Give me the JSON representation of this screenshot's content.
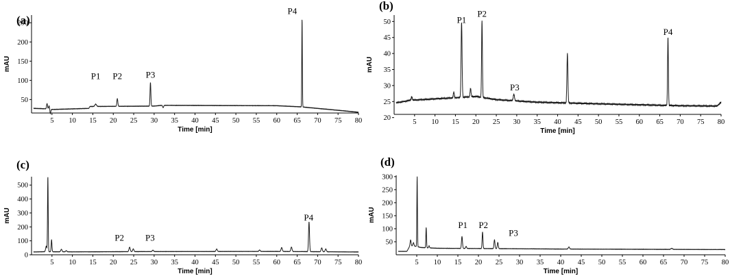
{
  "chart_data": [
    {
      "panel": "(a)",
      "type": "line",
      "xlabel": "Time [min]",
      "ylabel": "mAU",
      "xlim": [
        0,
        80
      ],
      "ylim": [
        15,
        270
      ],
      "xticks": [
        5,
        10,
        15,
        20,
        25,
        30,
        35,
        40,
        45,
        50,
        55,
        60,
        65,
        70,
        75,
        80
      ],
      "yticks": [
        50,
        100,
        150,
        200,
        250
      ],
      "baseline": [
        [
          0.5,
          27
        ],
        [
          3.5,
          26
        ],
        [
          4.5,
          24
        ],
        [
          14,
          27
        ],
        [
          14.3,
          32
        ],
        [
          30,
          33
        ],
        [
          32,
          35
        ],
        [
          60,
          34
        ],
        [
          66,
          31
        ],
        [
          80,
          17
        ]
      ],
      "peaks": [
        {
          "x": 3.8,
          "h": 14,
          "w": 0.12
        },
        {
          "x": 4.3,
          "h": 9,
          "w": 0.12
        },
        {
          "x": 4.6,
          "h": -11,
          "w": 0.1
        },
        {
          "x": 15.7,
          "h": 6,
          "w": 0.2
        },
        {
          "x": 21.0,
          "h": 20,
          "w": 0.12
        },
        {
          "x": 29.1,
          "h": 62,
          "w": 0.1
        },
        {
          "x": 32.2,
          "h": -6,
          "w": 0.12
        },
        {
          "x": 66.2,
          "h": 231,
          "w": 0.07
        }
      ],
      "annotations": [
        {
          "label": "P1",
          "x": 15.7,
          "y": 103
        },
        {
          "label": "P2",
          "x": 21.0,
          "y": 103
        },
        {
          "label": "P3",
          "x": 29.1,
          "y": 107
        },
        {
          "label": "P4",
          "x": 63.8,
          "y": 273
        }
      ]
    },
    {
      "panel": "(b)",
      "type": "line",
      "xlabel": "Time [min]",
      "ylabel": "mAU",
      "xlim": [
        0,
        80
      ],
      "ylim": [
        21,
        52
      ],
      "xticks": [
        5,
        10,
        15,
        20,
        25,
        30,
        35,
        40,
        45,
        50,
        55,
        60,
        65,
        70,
        75,
        80
      ],
      "yticks": [
        20,
        25,
        30,
        35,
        40,
        45,
        50
      ],
      "baseline": [
        [
          0.5,
          24.6
        ],
        [
          4,
          25.4
        ],
        [
          15,
          26.2
        ],
        [
          20,
          26.6
        ],
        [
          25,
          25.6
        ],
        [
          35,
          24.8
        ],
        [
          50,
          24.3
        ],
        [
          70,
          23.7
        ],
        [
          79,
          23.6
        ],
        [
          80,
          24.8
        ]
      ],
      "peaks": [
        {
          "x": 4.3,
          "h": 1.0,
          "w": 0.12
        },
        {
          "x": 14.6,
          "h": 1.8,
          "w": 0.12
        },
        {
          "x": 16.5,
          "h": 23.5,
          "w": 0.12
        },
        {
          "x": 18.7,
          "h": 2.6,
          "w": 0.12
        },
        {
          "x": 21.5,
          "h": 24.0,
          "w": 0.1
        },
        {
          "x": 29.3,
          "h": 2.0,
          "w": 0.15
        },
        {
          "x": 42.4,
          "h": 15.4,
          "w": 0.12
        },
        {
          "x": 67.0,
          "h": 21.2,
          "w": 0.1
        }
      ],
      "annotations": [
        {
          "label": "P1",
          "x": 16.5,
          "y": 49.5
        },
        {
          "label": "P2",
          "x": 21.5,
          "y": 51.5
        },
        {
          "label": "P3",
          "x": 29.5,
          "y": 28.5
        },
        {
          "label": "P4",
          "x": 67.0,
          "y": 45.8
        }
      ]
    },
    {
      "panel": "(c)",
      "type": "line",
      "xlabel": "Time [min]",
      "ylabel": "mAU",
      "xlim": [
        0,
        80
      ],
      "ylim": [
        0,
        560
      ],
      "xticks": [
        5,
        10,
        15,
        20,
        25,
        30,
        35,
        40,
        45,
        50,
        55,
        60,
        65,
        70,
        75,
        80
      ],
      "yticks": [
        0,
        100,
        200,
        300,
        400,
        500
      ],
      "baseline": [
        [
          0.5,
          20
        ],
        [
          3,
          22
        ],
        [
          10,
          21
        ],
        [
          30,
          23
        ],
        [
          60,
          24
        ],
        [
          80,
          20
        ]
      ],
      "peaks": [
        {
          "x": 3.6,
          "h": 40,
          "w": 0.15
        },
        {
          "x": 4.0,
          "h": 540,
          "w": 0.08
        },
        {
          "x": 4.9,
          "h": 88,
          "w": 0.1
        },
        {
          "x": 7.3,
          "h": 18,
          "w": 0.15
        },
        {
          "x": 8.5,
          "h": 8,
          "w": 0.15
        },
        {
          "x": 24.0,
          "h": 32,
          "w": 0.15
        },
        {
          "x": 24.9,
          "h": 20,
          "w": 0.15
        },
        {
          "x": 29.7,
          "h": 10,
          "w": 0.15
        },
        {
          "x": 45.3,
          "h": 18,
          "w": 0.15
        },
        {
          "x": 55.8,
          "h": 10,
          "w": 0.15
        },
        {
          "x": 61.2,
          "h": 28,
          "w": 0.15
        },
        {
          "x": 63.6,
          "h": 32,
          "w": 0.15
        },
        {
          "x": 67.9,
          "h": 214,
          "w": 0.12
        },
        {
          "x": 71.0,
          "h": 28,
          "w": 0.15
        },
        {
          "x": 72.0,
          "h": 20,
          "w": 0.15
        }
      ],
      "annotations": [
        {
          "label": "P2",
          "x": 21.5,
          "y": 100
        },
        {
          "label": "P3",
          "x": 29.0,
          "y": 100
        },
        {
          "label": "P4",
          "x": 67.8,
          "y": 245
        }
      ]
    },
    {
      "panel": "(d)",
      "type": "line",
      "xlabel": "Time [min]",
      "ylabel": "mAU",
      "xlim": [
        0,
        80
      ],
      "ylim": [
        0,
        305
      ],
      "xticks": [
        5,
        10,
        15,
        20,
        25,
        30,
        35,
        40,
        45,
        50,
        55,
        60,
        65,
        70,
        75,
        80
      ],
      "yticks": [
        50,
        100,
        150,
        200,
        250,
        300
      ],
      "baseline": [
        [
          0.5,
          13
        ],
        [
          2.6,
          13
        ],
        [
          3.2,
          30
        ],
        [
          4,
          35
        ],
        [
          6,
          28
        ],
        [
          10,
          25
        ],
        [
          20,
          24
        ],
        [
          40,
          22
        ],
        [
          80,
          20
        ]
      ],
      "peaks": [
        {
          "x": 3.5,
          "h": 25,
          "w": 0.12
        },
        {
          "x": 4.2,
          "h": 12,
          "w": 0.12
        },
        {
          "x": 5.1,
          "h": 270,
          "w": 0.07
        },
        {
          "x": 7.3,
          "h": 78,
          "w": 0.08
        },
        {
          "x": 8.0,
          "h": 8,
          "w": 0.1
        },
        {
          "x": 16.0,
          "h": 46,
          "w": 0.12
        },
        {
          "x": 17.0,
          "h": 8,
          "w": 0.12
        },
        {
          "x": 21.0,
          "h": 64,
          "w": 0.1
        },
        {
          "x": 23.9,
          "h": 34,
          "w": 0.12
        },
        {
          "x": 24.7,
          "h": 24,
          "w": 0.12
        },
        {
          "x": 42.0,
          "h": 8,
          "w": 0.15
        },
        {
          "x": 67.0,
          "h": 4,
          "w": 0.2
        }
      ],
      "annotations": [
        {
          "label": "P1",
          "x": 16.2,
          "y": 103
        },
        {
          "label": "P2",
          "x": 21.2,
          "y": 103
        },
        {
          "label": "P3",
          "x": 28.5,
          "y": 72
        }
      ]
    }
  ]
}
